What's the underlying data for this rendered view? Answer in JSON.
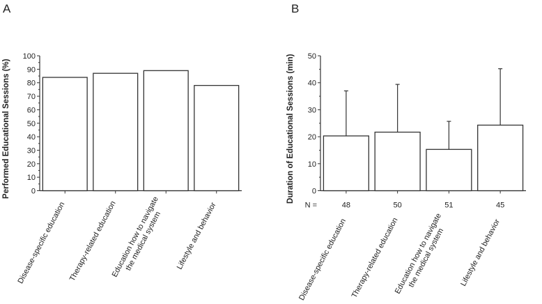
{
  "chart_data": [
    {
      "panel_label": "A",
      "type": "bar",
      "title": "",
      "xlabel": "",
      "ylabel": "Performed Educational Sessions (%)",
      "categories": [
        "Disease-specific education",
        "Therapy-related education",
        "Education how to navigate the medical system",
        "Lifestyle and behavior"
      ],
      "category_lines": [
        [
          "Disease-specific education"
        ],
        [
          "Therapy-related education"
        ],
        [
          "Education how to navigate",
          "the medical system"
        ],
        [
          "Lifestyle and behavior"
        ]
      ],
      "values": [
        84,
        87,
        89,
        78
      ],
      "ylim": [
        0,
        100
      ],
      "yticks": [
        "0",
        "10",
        "20",
        "30",
        "40",
        "50",
        "60",
        "70",
        "80",
        "90",
        "100"
      ],
      "grid": false
    },
    {
      "panel_label": "B",
      "type": "bar",
      "title": "",
      "xlabel": "",
      "ylabel": "Duration of Educational Sessions (min)",
      "categories": [
        "Disease-specific education",
        "Therapy-related education",
        "Education how to navigate the medical system",
        "Lifestyle and behavior"
      ],
      "category_lines": [
        [
          "Disease-specific education"
        ],
        [
          "Therapy-related education"
        ],
        [
          "Education how to navigate",
          "the medical system"
        ],
        [
          "Lifestyle and behavior"
        ]
      ],
      "values": [
        20.3,
        21.7,
        15.3,
        24.3
      ],
      "error_upper": [
        37.0,
        39.4,
        25.7,
        45.2
      ],
      "n_label": "N =",
      "n_values": [
        "48",
        "50",
        "51",
        "45"
      ],
      "ylim": [
        0,
        50
      ],
      "yticks": [
        "0",
        "10",
        "20",
        "30",
        "40",
        "50"
      ],
      "grid": false
    }
  ]
}
